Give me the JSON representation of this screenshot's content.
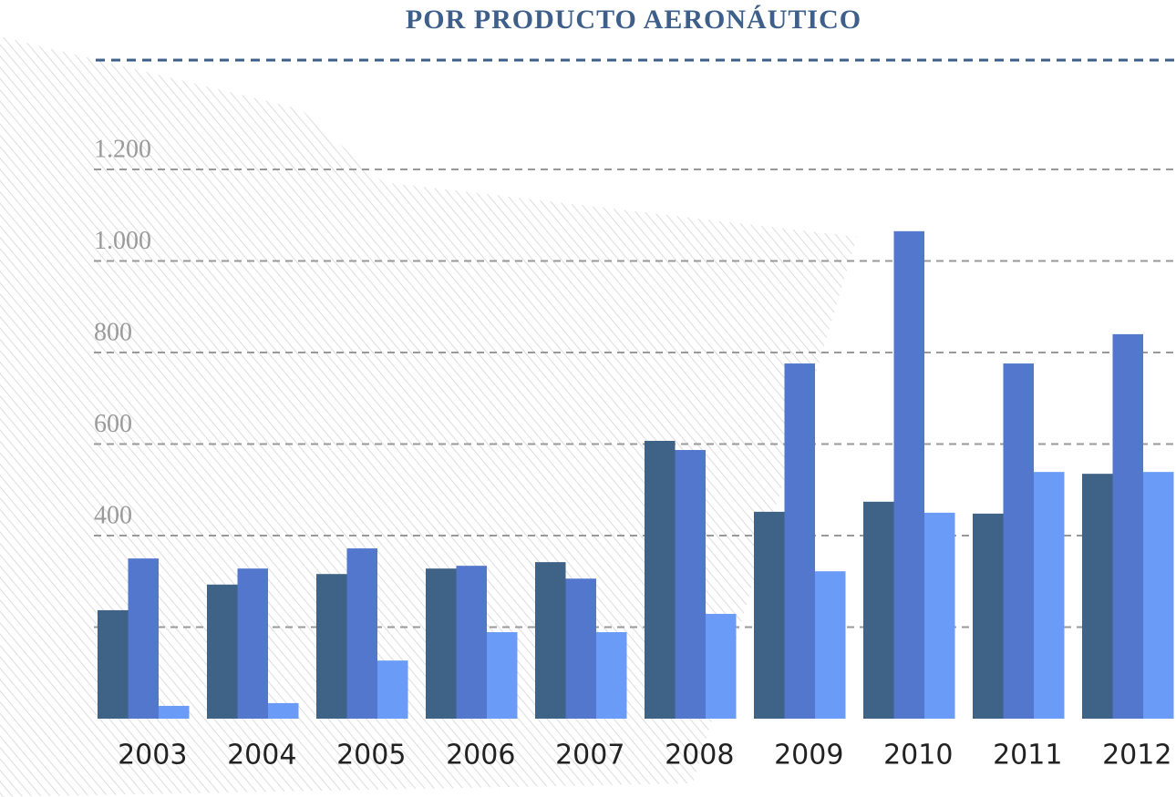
{
  "chart_data": {
    "type": "bar",
    "title": "POR PRODUCTO AERONÁUTICO",
    "categories": [
      "2003",
      "2004",
      "2005",
      "2006",
      "2007",
      "2008",
      "2009",
      "2010",
      "2011",
      "2012"
    ],
    "series": [
      {
        "color": "#3f6287",
        "values": [
          237,
          293,
          316,
          328,
          342,
          607,
          452,
          474,
          448,
          535
        ]
      },
      {
        "color": "#5277cc",
        "values": [
          350,
          328,
          372,
          334,
          306,
          587,
          776,
          1065,
          776,
          840
        ]
      },
      {
        "color": "#6a9cf7",
        "values": [
          28,
          34,
          127,
          189,
          189,
          229,
          322,
          450,
          539,
          539
        ]
      }
    ],
    "ylim": [
      0,
      1200
    ],
    "yticks": [
      {
        "value": 200,
        "label": null
      },
      400,
      600,
      800,
      {
        "value": 1000,
        "label": "1.000"
      },
      {
        "value": 1200,
        "label": "1.200"
      }
    ],
    "grid": true
  }
}
